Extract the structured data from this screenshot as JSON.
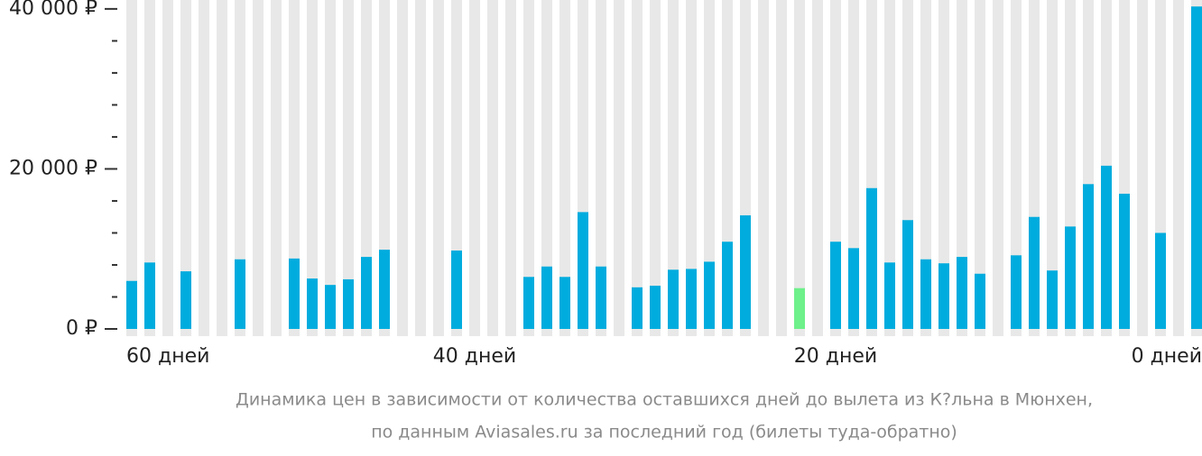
{
  "chart_data": {
    "type": "bar",
    "caption": [
      "Динамика цен в зависимости от количества оставшихся дней до вылета из К?льна в Мюнхен,",
      "по данным Aviasales.ru за последний год (билеты туда-обратно)"
    ],
    "categories": [
      "60 дней",
      null,
      null,
      null,
      null,
      null,
      null,
      null,
      null,
      null,
      null,
      null,
      null,
      null,
      null,
      null,
      null,
      null,
      null,
      "40 дней",
      null,
      null,
      null,
      null,
      null,
      null,
      null,
      null,
      null,
      null,
      null,
      null,
      null,
      null,
      null,
      null,
      null,
      null,
      null,
      "20 дней",
      null,
      null,
      null,
      null,
      null,
      null,
      null,
      null,
      null,
      null,
      null,
      null,
      null,
      null,
      null,
      null,
      null,
      null,
      null,
      "0 дней"
    ],
    "values": [
      6000,
      8300,
      null,
      7200,
      null,
      null,
      8700,
      null,
      null,
      8800,
      6300,
      5500,
      6200,
      9000,
      9900,
      null,
      null,
      null,
      9800,
      null,
      null,
      null,
      6500,
      7800,
      6500,
      14600,
      7800,
      null,
      5200,
      5400,
      7400,
      7500,
      8400,
      10900,
      14200,
      null,
      null,
      5100,
      null,
      10900,
      10100,
      17600,
      8300,
      13600,
      8700,
      8200,
      9000,
      6900,
      null,
      9200,
      14000,
      7300,
      12800,
      18100,
      20400,
      16900,
      null,
      12000,
      null,
      40300
    ],
    "color": "#00acde",
    "highlight_color": "#6ef08a",
    "highlight": [
      37
    ],
    "column_color": "#e8e8e8",
    "ylim": [
      0,
      41000
    ],
    "yticks": [
      {
        "value": 0,
        "label": "0 ₽"
      },
      {
        "value": 20000,
        "label": "20 000 ₽"
      },
      {
        "value": 40000,
        "label": "40 000 ₽"
      }
    ],
    "yminor": [
      4000,
      8000,
      12000,
      16000,
      24000,
      28000,
      32000,
      36000
    ]
  }
}
